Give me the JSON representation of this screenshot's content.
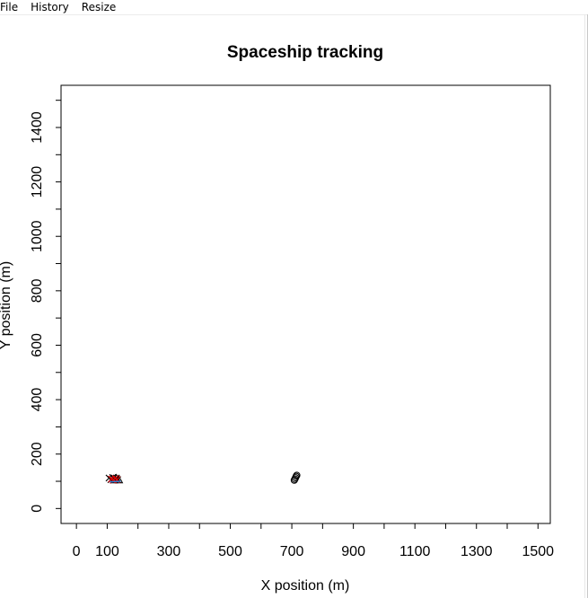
{
  "menu": {
    "items": [
      "File",
      "History",
      "Resize"
    ]
  },
  "chart_data": {
    "type": "scatter",
    "title": "Spaceship tracking",
    "xlabel": "X position (m)",
    "ylabel": "Y position (m)",
    "xlim": [
      -50,
      1540
    ],
    "ylim": [
      -55,
      1555
    ],
    "x_ticks": [
      0,
      100,
      300,
      500,
      700,
      900,
      1100,
      1300,
      1500
    ],
    "x_minor_ticks": [
      200,
      400,
      600,
      800,
      1000,
      1200,
      1400
    ],
    "y_ticks": [
      0,
      200,
      400,
      600,
      800,
      1000,
      1200,
      1400
    ],
    "y_minor_ticks": [
      100,
      300,
      500,
      700,
      900,
      1100,
      1300,
      1500
    ],
    "grid": false,
    "series": [
      {
        "marker": "circle",
        "color": "#000000",
        "x": [
          708,
          710,
          712,
          714,
          716
        ],
        "y": [
          104,
          108,
          113,
          118,
          122
        ]
      },
      {
        "marker": "x",
        "color": "#000000",
        "x": [
          106,
          112,
          118,
          124,
          130,
          134
        ],
        "y": [
          112,
          106,
          114,
          108,
          112,
          106
        ]
      },
      {
        "marker": "triangle",
        "color": "#000000",
        "x": [
          122,
          130,
          138
        ],
        "y": [
          104,
          110,
          104
        ]
      },
      {
        "marker": "x",
        "color": "#e00000",
        "x": [
          114,
          120,
          126,
          132
        ],
        "y": [
          108,
          104,
          110,
          106
        ]
      },
      {
        "marker": "line",
        "color": "#2a7fd4",
        "x": [
          108,
          144
        ],
        "y": [
          98,
          100
        ]
      }
    ]
  }
}
